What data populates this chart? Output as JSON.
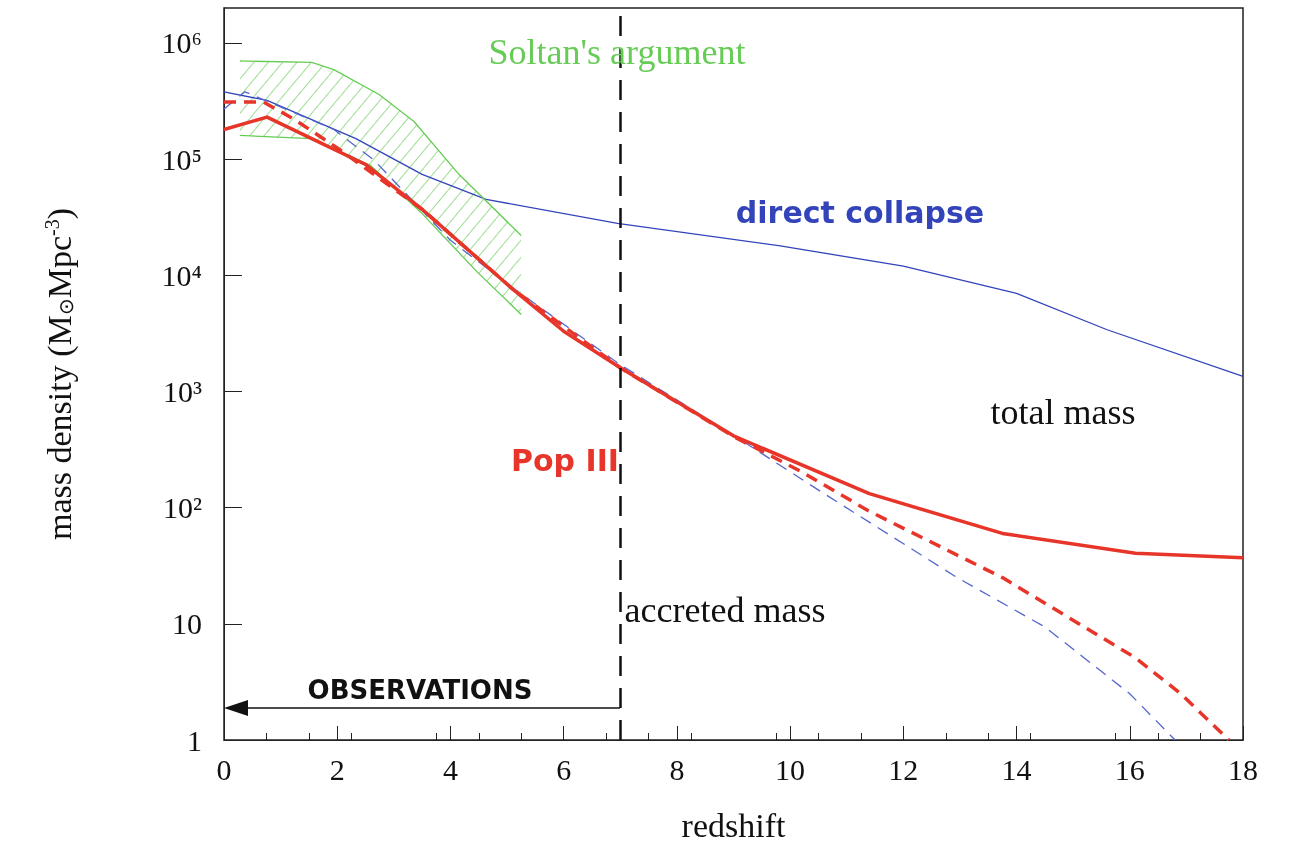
{
  "chart_data": {
    "type": "line",
    "xlabel": "redshift",
    "ylabel": "mass density (M$_{⊙}$Mpc$^{-3}$)",
    "xlim": [
      0,
      18
    ],
    "xticks": [
      0,
      2,
      4,
      6,
      8,
      10,
      12,
      14,
      16,
      18
    ],
    "ylim": [
      1,
      2000000
    ],
    "yticks": [
      1,
      10,
      {
        "value": 100,
        "label": "10²"
      },
      {
        "value": 1000,
        "label": "10³"
      },
      {
        "value": 10000,
        "label": "10⁴"
      },
      {
        "value": 100000,
        "label": "10⁵"
      },
      {
        "value": 1000000,
        "label": "10⁶"
      }
    ],
    "log": "y",
    "grid": false,
    "legend": false,
    "marker": "none",
    "series": [
      {
        "name": "direct collapse",
        "color": "#3344bb",
        "line_style": "solid",
        "x": [
          0,
          0.76,
          2.33,
          3.5,
          4.63,
          6.95,
          9.8,
          12,
          14,
          15.6,
          18
        ],
        "values": [
          380000,
          320000,
          150000,
          74000,
          45000,
          28000,
          18000,
          12000,
          7000,
          3400,
          1350
        ]
      },
      {
        "color": "#5566cc",
        "line_style": "dashed",
        "x": [
          0,
          0.37,
          1.94,
          2.65,
          4,
          5.1,
          7,
          9,
          10.6,
          12.95,
          14.5,
          16,
          16.8
        ],
        "values": [
          270000,
          380000,
          180000,
          98000,
          20000,
          7800,
          1700,
          420,
          132,
          25,
          9.4,
          2.5,
          1
        ]
      },
      {
        "name": "Pop III",
        "color": "#e8352a",
        "line_style": "solid",
        "x": [
          0,
          0.76,
          1.55,
          2.5,
          3.5,
          5.1,
          6,
          7,
          9,
          11.4,
          13.75,
          16.1,
          18
        ],
        "values": [
          180000,
          230000,
          150000,
          90000,
          37000,
          7600,
          3300,
          1600,
          415,
          132,
          60,
          40.5,
          37
        ]
      },
      {
        "color": "#e8352a",
        "line_style": "dashed",
        "x": [
          0,
          0.7,
          1.24,
          2,
          3.5,
          5.1,
          7,
          9,
          10.2,
          11.4,
          13.75,
          16.1,
          16.9,
          17.75
        ],
        "values": [
          310000,
          310000,
          220000,
          125000,
          37000,
          7600,
          1600,
          410,
          204,
          93,
          25,
          5.1,
          2.5,
          1
        ]
      },
      {
        "name": "Soltan's argument",
        "color": "#66cc55",
        "line_style": "solid",
        "x": [
          0.28,
          1.55,
          1.94,
          2.74,
          3.36,
          4.15,
          5.25
        ],
        "values": [
          700000,
          680000,
          590000,
          360000,
          210000,
          74000,
          22000
        ]
      },
      {
        "color": "#66cc55",
        "line_style": "solid",
        "x": [
          0.28,
          1.55,
          2.58,
          3.5,
          4.47,
          5.25
        ],
        "values": [
          160000,
          150000,
          89000,
          34000,
          10700,
          4600
        ]
      }
    ],
    "ref_lines": [
      {
        "axis": "x",
        "value": 7,
        "color": "#111111",
        "line_style": "dashed"
      }
    ],
    "annotations": [
      "total mass",
      "accreted mass",
      "OBSERVATIONS"
    ]
  }
}
